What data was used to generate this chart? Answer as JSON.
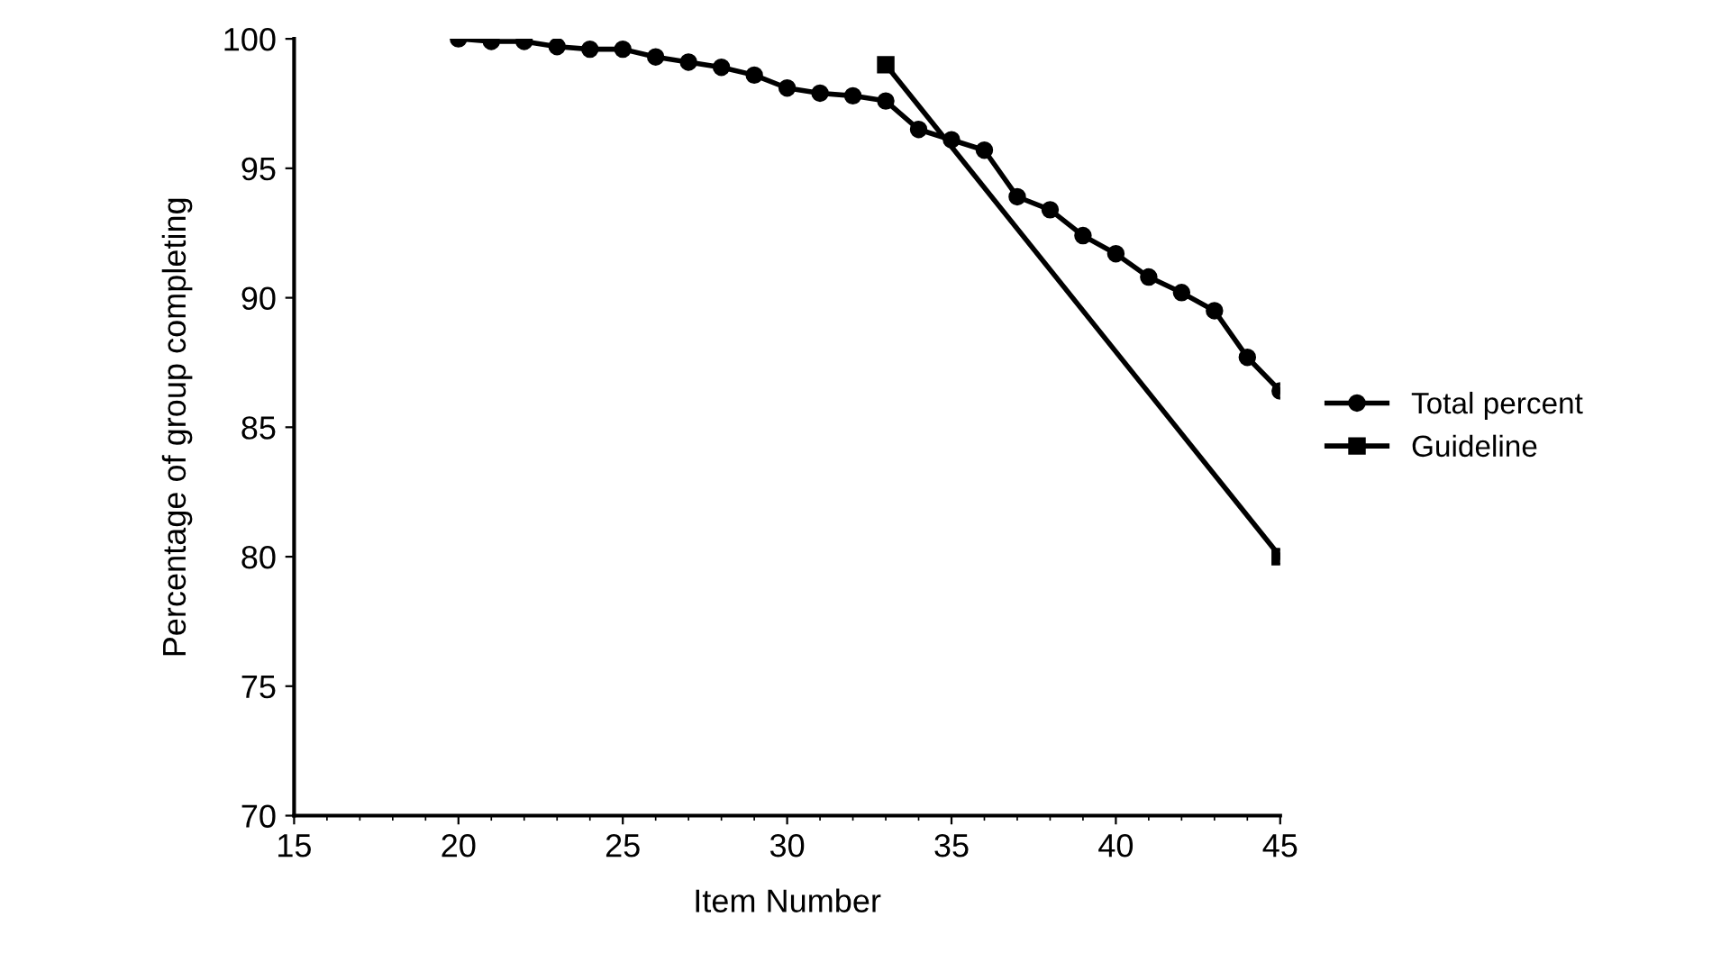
{
  "chart_data": {
    "type": "line",
    "xlabel": "Item Number",
    "ylabel": "Percentage of group completing",
    "xlim": [
      15,
      45
    ],
    "xticks": [
      15,
      20,
      25,
      30,
      35,
      40,
      45
    ],
    "ylim": [
      70,
      100
    ],
    "yticks": [
      70,
      75,
      80,
      85,
      90,
      95,
      100
    ],
    "grid": false,
    "legend": "right",
    "series": [
      {
        "name": "Total percent",
        "color": "#000000",
        "marker": "circle",
        "x": [
          20,
          21,
          22,
          23,
          24,
          25,
          26,
          27,
          28,
          29,
          30,
          31,
          32,
          33,
          34,
          35,
          36,
          37,
          38,
          39,
          40,
          41,
          42,
          43,
          44,
          45
        ],
        "values": [
          100,
          99.9,
          99.9,
          99.7,
          99.6,
          99.6,
          99.3,
          99.1,
          98.9,
          98.6,
          98.1,
          97.9,
          97.8,
          97.6,
          96.5,
          96.1,
          95.7,
          93.9,
          93.4,
          92.4,
          91.7,
          90.8,
          90.2,
          89.5,
          87.7,
          86.4
        ]
      },
      {
        "name": "Guideline",
        "color": "#000000",
        "marker": "square",
        "x": [
          33,
          45
        ],
        "values": [
          99,
          80
        ]
      }
    ]
  }
}
